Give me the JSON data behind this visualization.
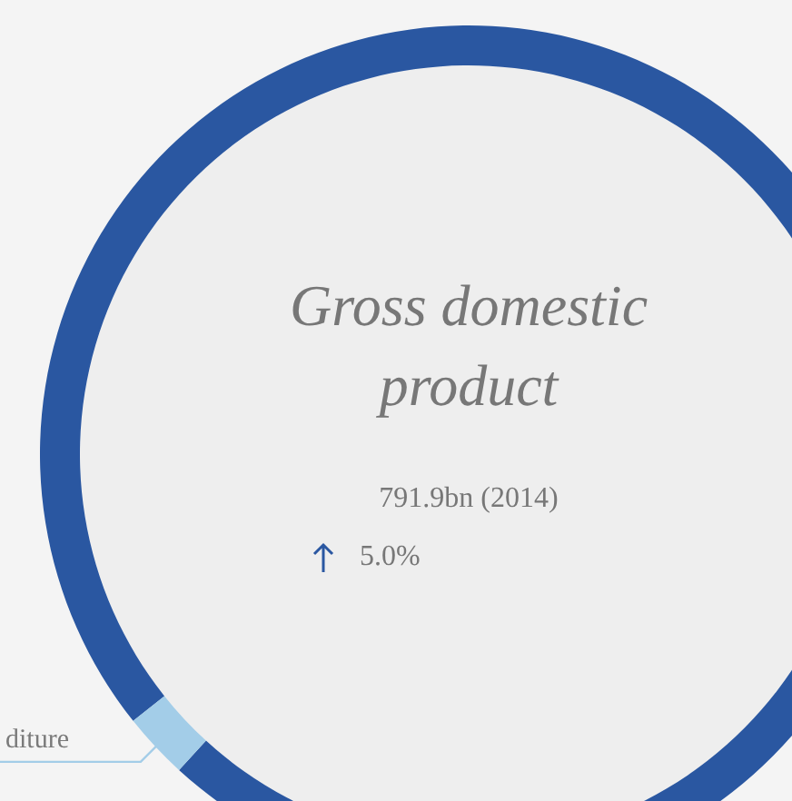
{
  "chart_data": {
    "type": "donut",
    "title": "Gross domestic product",
    "categories": [
      null,
      "diture"
    ],
    "values": [
      97.5,
      2.5
    ],
    "colors": [
      "#2a57a1",
      "#a3cde8"
    ],
    "annotations": [
      "791.9bn (2014)",
      "5.0%"
    ],
    "legend": false
  }
}
